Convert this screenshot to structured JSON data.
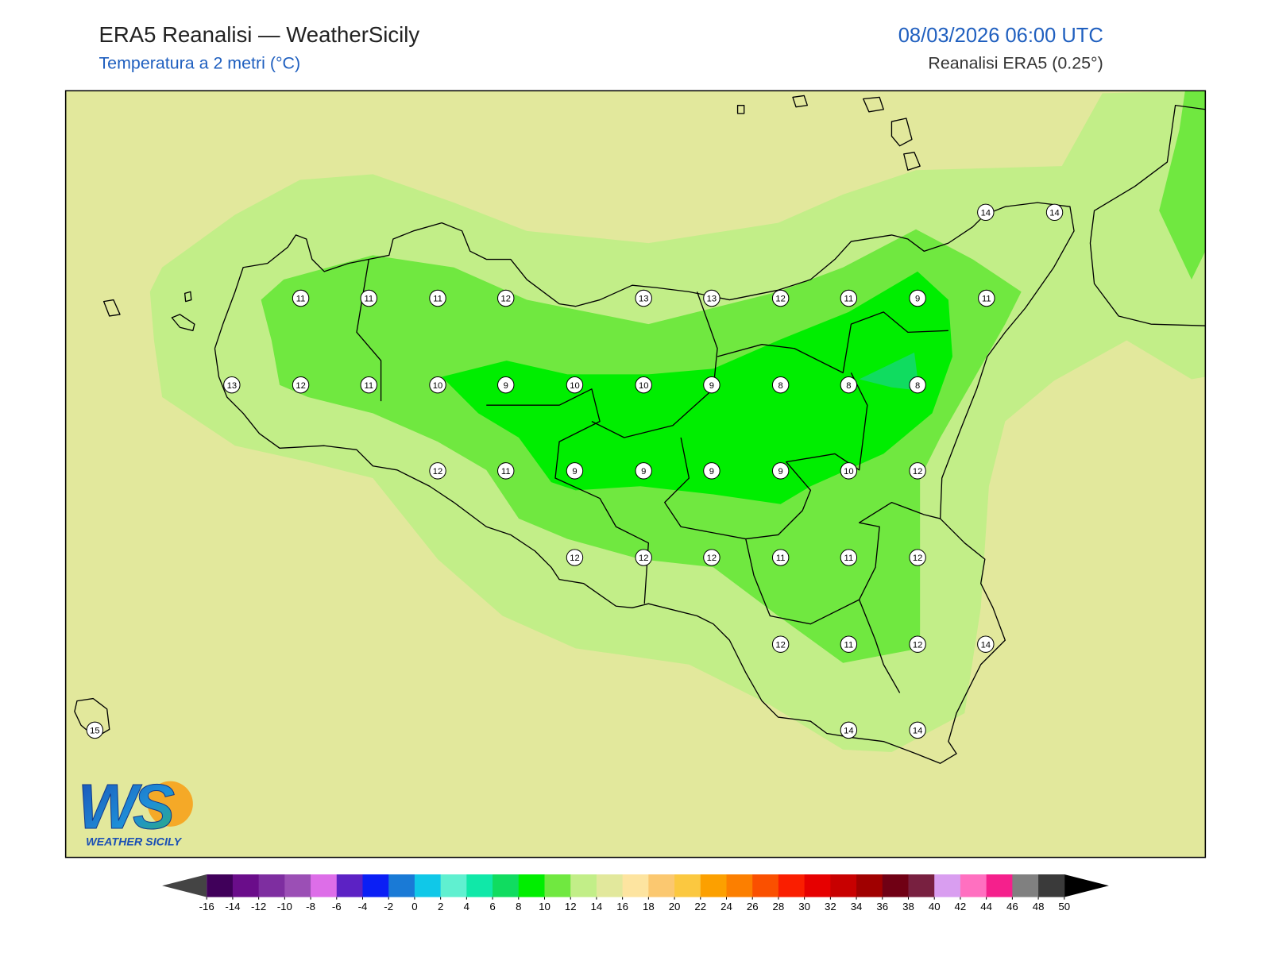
{
  "header": {
    "title": "ERA5 Reanalisi — WeatherSicily",
    "subtitle": "Temperatura a 2 metri (°C)",
    "datetime": "08/03/2026 06:00 UTC",
    "source": "Reanalisi ERA5 (0.25°)"
  },
  "map": {
    "stations": [
      14,
      14,
      11,
      11,
      11,
      12,
      13,
      13,
      12,
      11,
      9,
      11,
      13,
      12,
      11,
      10,
      9,
      10,
      10,
      9,
      8,
      8,
      8,
      12,
      11,
      9,
      9,
      9,
      9,
      10,
      12,
      12,
      12,
      12,
      11,
      11,
      12,
      12,
      11,
      12,
      14,
      15,
      14,
      14
    ]
  },
  "colorbar": {
    "ticks": [
      -16,
      -14,
      -12,
      -10,
      -8,
      -6,
      -4,
      -2,
      0,
      2,
      4,
      6,
      8,
      10,
      12,
      14,
      16,
      18,
      20,
      22,
      24,
      26,
      28,
      30,
      32,
      34,
      36,
      38,
      40,
      42,
      44,
      46,
      48,
      50
    ],
    "colors": [
      "#40005a",
      "#6a0d8a",
      "#7e2ea0",
      "#9b4fb5",
      "#dd6ee8",
      "#5c22c4",
      "#0b1ff5",
      "#1a7ad6",
      "#10c8e8",
      "#60f0d0",
      "#10e8a8",
      "#10dc60",
      "#00ee00",
      "#70e840",
      "#c2ee88",
      "#e2e89c",
      "#fde4a0",
      "#fbc870",
      "#fbc840",
      "#fca000",
      "#fc7f00",
      "#fa5000",
      "#fa1e00",
      "#e60000",
      "#c80000",
      "#a00000",
      "#700014",
      "#782040",
      "#d99ef0",
      "#ff70c0",
      "#f5208c",
      "#808080",
      "#3a3a3a"
    ],
    "under_color": "#444444",
    "over_color": "#000000"
  },
  "logo": {
    "mark": "WS",
    "name": "WEATHER SICILY"
  }
}
